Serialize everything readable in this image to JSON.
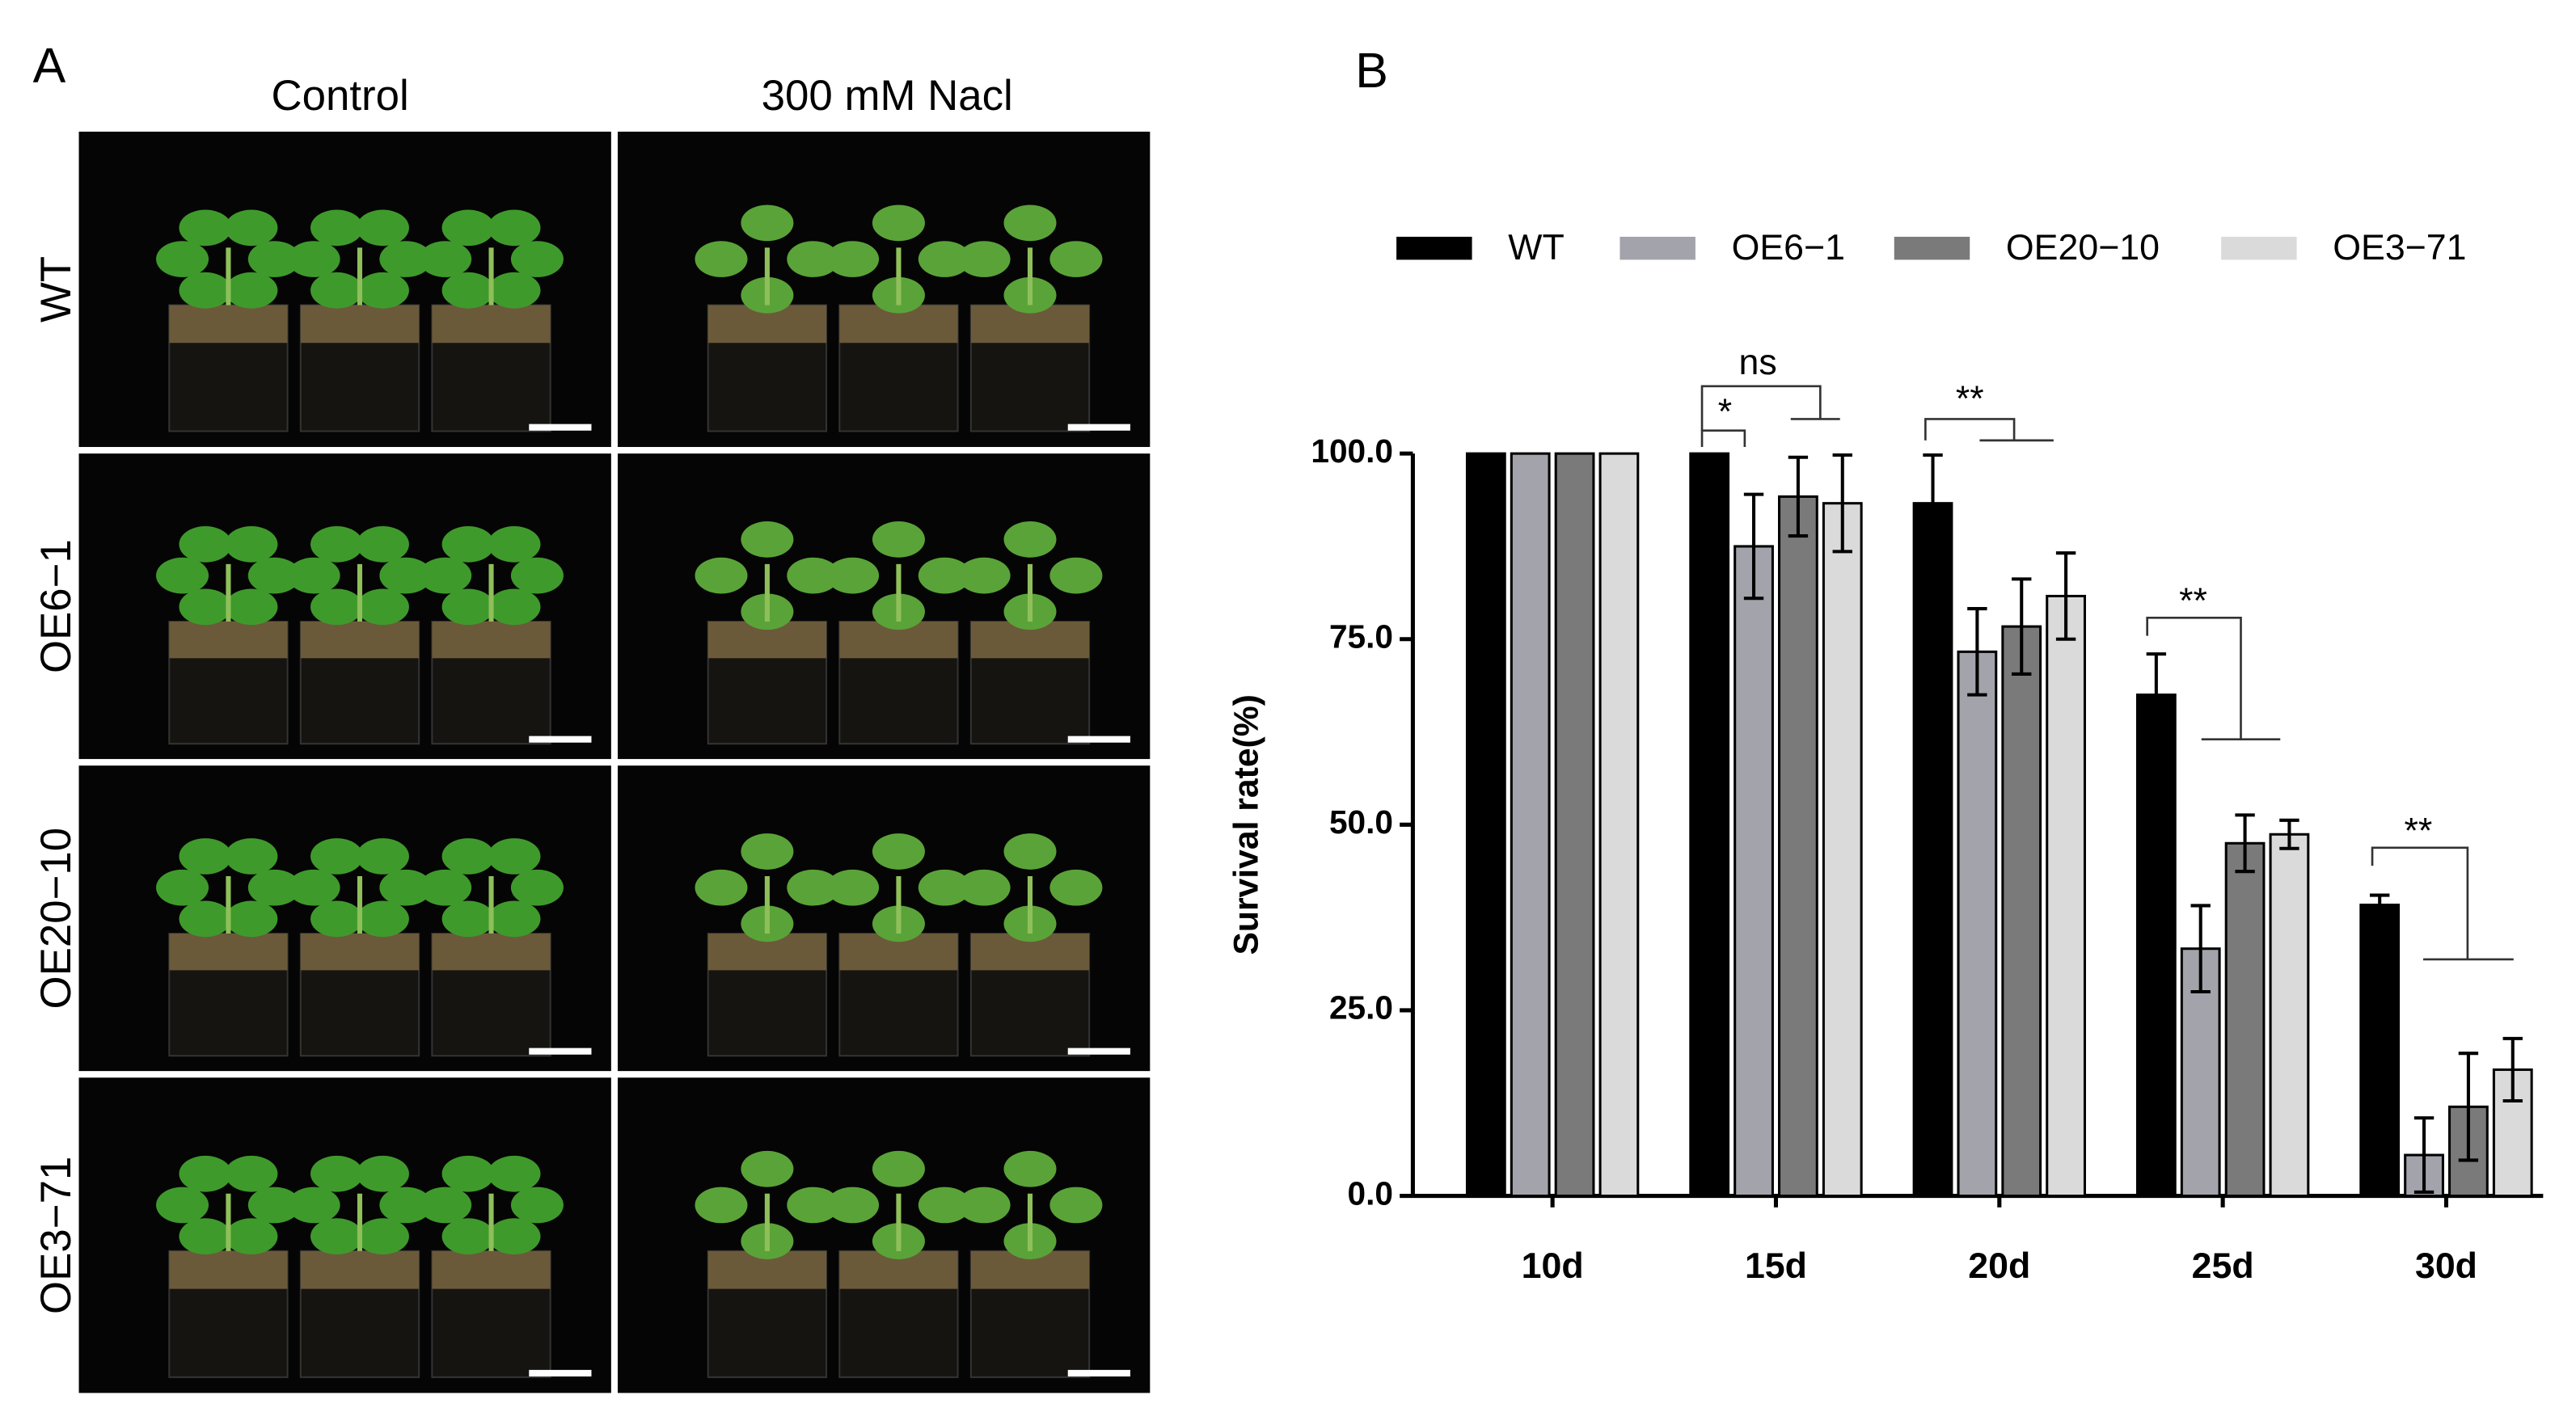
{
  "panel_a": {
    "label": "A",
    "columns": [
      "Control",
      "300 mM Nacl"
    ],
    "rows": [
      "WT",
      "OE6−1",
      "OE20−10",
      "OE3−71"
    ]
  },
  "chart_data": {
    "type": "bar",
    "panel_label": "B",
    "y_label": "Survival rate(%)",
    "categories": [
      "10d",
      "15d",
      "20d",
      "25d",
      "30d"
    ],
    "series": [
      {
        "name": "WT",
        "color": "#000000",
        "values": [
          100,
          100,
          93.3,
          67.5,
          39.2
        ],
        "errors": [
          0,
          0,
          6.5,
          5.5,
          1.3
        ]
      },
      {
        "name": "OE6−1",
        "color": "#a3a3ab",
        "values": [
          100,
          87.5,
          73.3,
          33.3,
          5.5
        ],
        "errors": [
          0,
          7,
          5.8,
          5.8,
          5
        ]
      },
      {
        "name": "OE20−10",
        "color": "#7a7a7a",
        "values": [
          100,
          94.2,
          76.7,
          47.5,
          12
        ],
        "errors": [
          0,
          5.3,
          6.4,
          3.8,
          7.2
        ]
      },
      {
        "name": "OE3−71",
        "color": "#dadada",
        "values": [
          100,
          93.3,
          80.8,
          48.7,
          17
        ],
        "errors": [
          0,
          6.5,
          5.8,
          1.9,
          4.2
        ]
      }
    ],
    "ylim": [
      0,
      100
    ],
    "yticks": [
      {
        "value": 0,
        "label": "0.0"
      },
      {
        "value": 25,
        "label": "25.0"
      },
      {
        "value": 50,
        "label": "50.0"
      },
      {
        "value": 75,
        "label": "75.0"
      },
      {
        "value": 100,
        "label": "100.0"
      }
    ],
    "annotations": [
      "ns",
      "*",
      "**",
      "**",
      "**"
    ]
  }
}
